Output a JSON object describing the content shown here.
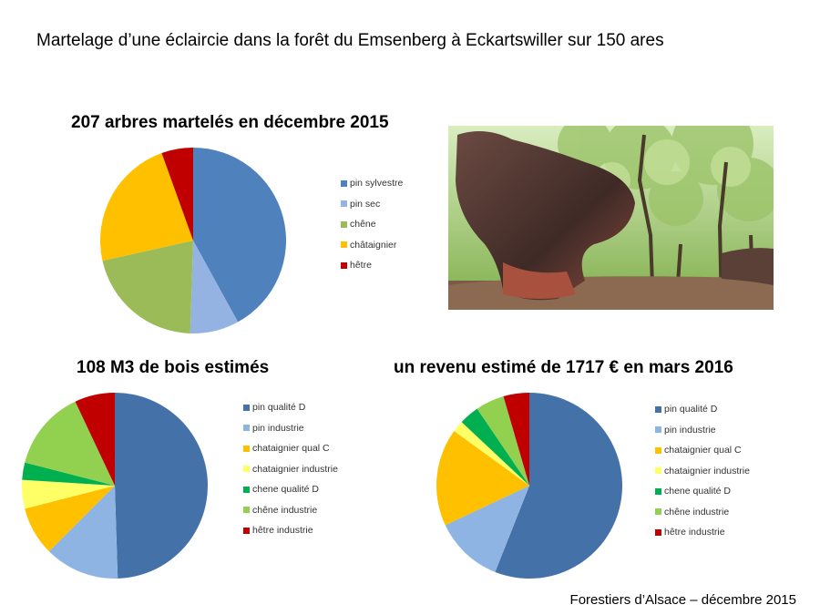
{
  "page": {
    "title": "Martelage d’une éclaircie dans la forêt du Emsenberg à Eckartswiller sur 150 ares",
    "footer": "Forestiers d’Alsace – décembre 2015"
  },
  "chart_data": [
    {
      "type": "pie",
      "title": "207 arbres martelés en décembre 2015",
      "categories": [
        "pin sylvestre",
        "pin sec",
        "chêne",
        "châtaignier",
        "hêtre"
      ],
      "values": [
        42,
        8.5,
        21,
        23,
        5.5
      ],
      "colors": [
        "#4F81BD",
        "#95B3E2",
        "#9BBB59",
        "#FFC000",
        "#C00000"
      ],
      "legend": "right"
    },
    {
      "type": "pie",
      "title": "108 M3 de bois estimés",
      "categories": [
        "pin qualité D",
        "pin industrie",
        "chataignier qual C",
        "chataignier industrie",
        "chene qualité D",
        "chêne industrie",
        "hêtre industrie"
      ],
      "values": [
        49.5,
        13,
        8.5,
        5,
        3,
        14,
        7
      ],
      "colors": [
        "#4472A8",
        "#8EB4E3",
        "#FFC000",
        "#FFFF66",
        "#00B050",
        "#92D050",
        "#C00000"
      ],
      "legend": "right"
    },
    {
      "type": "pie",
      "title": "un revenu estimé de 1717 € en mars 2016",
      "categories": [
        "pin qualité D",
        "pin industrie",
        "chataignier qual C",
        "chataignier industrie",
        "chene qualité D",
        "chêne industrie",
        "hêtre industrie"
      ],
      "values": [
        56,
        12,
        17,
        2,
        3.5,
        5,
        4.5
      ],
      "colors": [
        "#4472A8",
        "#8EB4E3",
        "#FFC000",
        "#FFFF66",
        "#00B050",
        "#92D050",
        "#C00000"
      ],
      "legend": "right"
    }
  ]
}
